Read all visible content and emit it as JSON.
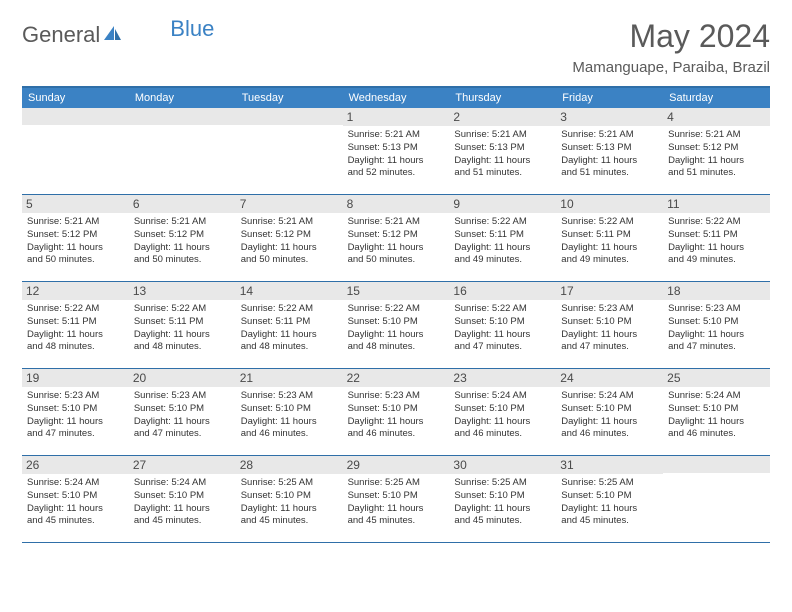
{
  "logo": {
    "text1": "General",
    "text2": "Blue"
  },
  "title": "May 2024",
  "location": "Mamanguape, Paraiba, Brazil",
  "weekdays": [
    "Sunday",
    "Monday",
    "Tuesday",
    "Wednesday",
    "Thursday",
    "Friday",
    "Saturday"
  ],
  "colors": {
    "header_bg": "#3b82c4",
    "border": "#2f6fa8",
    "daynum_bg": "#e8e8e8",
    "text": "#333333",
    "title_text": "#5a5a5a"
  },
  "weeks": [
    [
      {
        "n": "",
        "lines": []
      },
      {
        "n": "",
        "lines": []
      },
      {
        "n": "",
        "lines": []
      },
      {
        "n": "1",
        "lines": [
          "Sunrise: 5:21 AM",
          "Sunset: 5:13 PM",
          "Daylight: 11 hours",
          "and 52 minutes."
        ]
      },
      {
        "n": "2",
        "lines": [
          "Sunrise: 5:21 AM",
          "Sunset: 5:13 PM",
          "Daylight: 11 hours",
          "and 51 minutes."
        ]
      },
      {
        "n": "3",
        "lines": [
          "Sunrise: 5:21 AM",
          "Sunset: 5:13 PM",
          "Daylight: 11 hours",
          "and 51 minutes."
        ]
      },
      {
        "n": "4",
        "lines": [
          "Sunrise: 5:21 AM",
          "Sunset: 5:12 PM",
          "Daylight: 11 hours",
          "and 51 minutes."
        ]
      }
    ],
    [
      {
        "n": "5",
        "lines": [
          "Sunrise: 5:21 AM",
          "Sunset: 5:12 PM",
          "Daylight: 11 hours",
          "and 50 minutes."
        ]
      },
      {
        "n": "6",
        "lines": [
          "Sunrise: 5:21 AM",
          "Sunset: 5:12 PM",
          "Daylight: 11 hours",
          "and 50 minutes."
        ]
      },
      {
        "n": "7",
        "lines": [
          "Sunrise: 5:21 AM",
          "Sunset: 5:12 PM",
          "Daylight: 11 hours",
          "and 50 minutes."
        ]
      },
      {
        "n": "8",
        "lines": [
          "Sunrise: 5:21 AM",
          "Sunset: 5:12 PM",
          "Daylight: 11 hours",
          "and 50 minutes."
        ]
      },
      {
        "n": "9",
        "lines": [
          "Sunrise: 5:22 AM",
          "Sunset: 5:11 PM",
          "Daylight: 11 hours",
          "and 49 minutes."
        ]
      },
      {
        "n": "10",
        "lines": [
          "Sunrise: 5:22 AM",
          "Sunset: 5:11 PM",
          "Daylight: 11 hours",
          "and 49 minutes."
        ]
      },
      {
        "n": "11",
        "lines": [
          "Sunrise: 5:22 AM",
          "Sunset: 5:11 PM",
          "Daylight: 11 hours",
          "and 49 minutes."
        ]
      }
    ],
    [
      {
        "n": "12",
        "lines": [
          "Sunrise: 5:22 AM",
          "Sunset: 5:11 PM",
          "Daylight: 11 hours",
          "and 48 minutes."
        ]
      },
      {
        "n": "13",
        "lines": [
          "Sunrise: 5:22 AM",
          "Sunset: 5:11 PM",
          "Daylight: 11 hours",
          "and 48 minutes."
        ]
      },
      {
        "n": "14",
        "lines": [
          "Sunrise: 5:22 AM",
          "Sunset: 5:11 PM",
          "Daylight: 11 hours",
          "and 48 minutes."
        ]
      },
      {
        "n": "15",
        "lines": [
          "Sunrise: 5:22 AM",
          "Sunset: 5:10 PM",
          "Daylight: 11 hours",
          "and 48 minutes."
        ]
      },
      {
        "n": "16",
        "lines": [
          "Sunrise: 5:22 AM",
          "Sunset: 5:10 PM",
          "Daylight: 11 hours",
          "and 47 minutes."
        ]
      },
      {
        "n": "17",
        "lines": [
          "Sunrise: 5:23 AM",
          "Sunset: 5:10 PM",
          "Daylight: 11 hours",
          "and 47 minutes."
        ]
      },
      {
        "n": "18",
        "lines": [
          "Sunrise: 5:23 AM",
          "Sunset: 5:10 PM",
          "Daylight: 11 hours",
          "and 47 minutes."
        ]
      }
    ],
    [
      {
        "n": "19",
        "lines": [
          "Sunrise: 5:23 AM",
          "Sunset: 5:10 PM",
          "Daylight: 11 hours",
          "and 47 minutes."
        ]
      },
      {
        "n": "20",
        "lines": [
          "Sunrise: 5:23 AM",
          "Sunset: 5:10 PM",
          "Daylight: 11 hours",
          "and 47 minutes."
        ]
      },
      {
        "n": "21",
        "lines": [
          "Sunrise: 5:23 AM",
          "Sunset: 5:10 PM",
          "Daylight: 11 hours",
          "and 46 minutes."
        ]
      },
      {
        "n": "22",
        "lines": [
          "Sunrise: 5:23 AM",
          "Sunset: 5:10 PM",
          "Daylight: 11 hours",
          "and 46 minutes."
        ]
      },
      {
        "n": "23",
        "lines": [
          "Sunrise: 5:24 AM",
          "Sunset: 5:10 PM",
          "Daylight: 11 hours",
          "and 46 minutes."
        ]
      },
      {
        "n": "24",
        "lines": [
          "Sunrise: 5:24 AM",
          "Sunset: 5:10 PM",
          "Daylight: 11 hours",
          "and 46 minutes."
        ]
      },
      {
        "n": "25",
        "lines": [
          "Sunrise: 5:24 AM",
          "Sunset: 5:10 PM",
          "Daylight: 11 hours",
          "and 46 minutes."
        ]
      }
    ],
    [
      {
        "n": "26",
        "lines": [
          "Sunrise: 5:24 AM",
          "Sunset: 5:10 PM",
          "Daylight: 11 hours",
          "and 45 minutes."
        ]
      },
      {
        "n": "27",
        "lines": [
          "Sunrise: 5:24 AM",
          "Sunset: 5:10 PM",
          "Daylight: 11 hours",
          "and 45 minutes."
        ]
      },
      {
        "n": "28",
        "lines": [
          "Sunrise: 5:25 AM",
          "Sunset: 5:10 PM",
          "Daylight: 11 hours",
          "and 45 minutes."
        ]
      },
      {
        "n": "29",
        "lines": [
          "Sunrise: 5:25 AM",
          "Sunset: 5:10 PM",
          "Daylight: 11 hours",
          "and 45 minutes."
        ]
      },
      {
        "n": "30",
        "lines": [
          "Sunrise: 5:25 AM",
          "Sunset: 5:10 PM",
          "Daylight: 11 hours",
          "and 45 minutes."
        ]
      },
      {
        "n": "31",
        "lines": [
          "Sunrise: 5:25 AM",
          "Sunset: 5:10 PM",
          "Daylight: 11 hours",
          "and 45 minutes."
        ]
      },
      {
        "n": "",
        "lines": []
      }
    ]
  ]
}
